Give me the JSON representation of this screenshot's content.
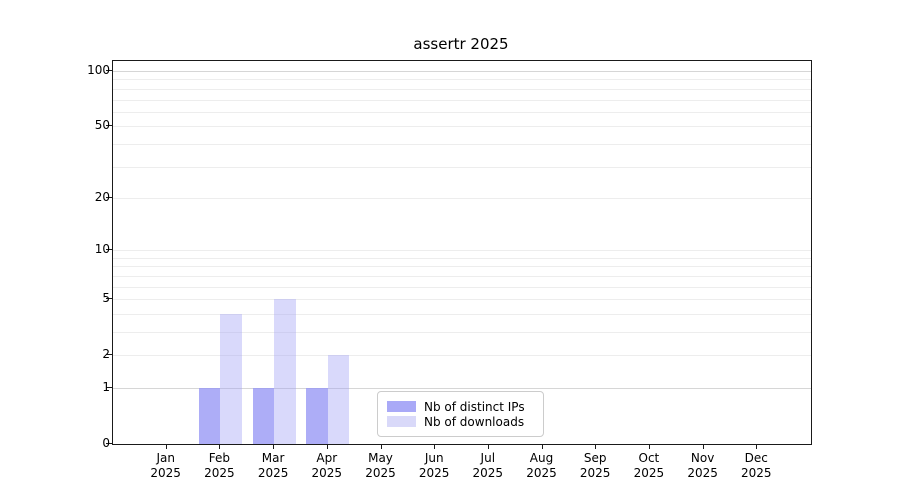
{
  "title": "assertr 2025",
  "chart_data": {
    "type": "bar",
    "title": "assertr 2025",
    "subtitle": "",
    "xlabel": "",
    "ylabel": "",
    "categories": [
      "Jan",
      "Feb",
      "Mar",
      "Apr",
      "May",
      "Jun",
      "Jul",
      "Aug",
      "Sep",
      "Oct",
      "Nov",
      "Dec"
    ],
    "category_year": "2025",
    "series": [
      {
        "name": "Nb of distinct IPs",
        "color": "#a9a9f7",
        "fill": "rgba(150,150,245,0.78)",
        "values": [
          0,
          1,
          1,
          1,
          0,
          0,
          0,
          0,
          0,
          0,
          0,
          0
        ]
      },
      {
        "name": "Nb of downloads",
        "color": "#d9d9f9",
        "fill": "rgba(160,160,245,0.40)",
        "values": [
          0,
          4,
          5,
          2,
          0,
          0,
          0,
          0,
          0,
          0,
          0,
          0
        ]
      }
    ],
    "y_axis": {
      "scale": "log10(value+1)",
      "tick_labels": [
        "100",
        "50",
        "20",
        "10",
        "5",
        "2",
        "1",
        "0"
      ],
      "tick_values": [
        100,
        50,
        20,
        10,
        5,
        2,
        1,
        0
      ],
      "minor_grid_values": [
        1,
        2,
        3,
        4,
        5,
        6,
        7,
        8,
        9,
        10,
        20,
        30,
        40,
        50,
        60,
        70,
        80,
        90,
        100
      ],
      "major_grid_values": [
        1,
        100
      ],
      "range": [
        0,
        113
      ]
    },
    "grid": true,
    "legend_position": "bottom-center-inside"
  },
  "colors": {
    "background": "#ffffff",
    "plot_border": "#1a1a1a",
    "grid_minor": "#ededed",
    "grid_major": "#d6d6d6",
    "text": "#000000"
  }
}
